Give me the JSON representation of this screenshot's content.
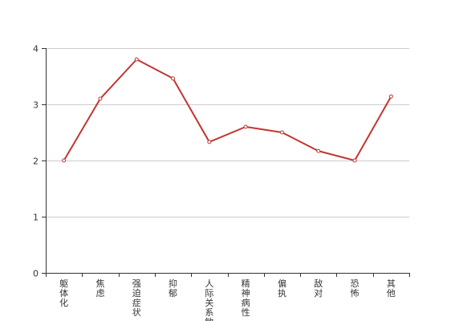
{
  "chart_data": {
    "type": "line",
    "title": "",
    "xlabel": "",
    "ylabel": "",
    "categories": [
      "躯体化",
      "焦虑",
      "强迫症状",
      "抑郁",
      "人际关系敏感",
      "精神病性",
      "偏执",
      "敌对",
      "恐怖",
      "其他"
    ],
    "series": [
      {
        "values": [
          2.0,
          3.1,
          3.8,
          3.46,
          2.33,
          2.6,
          2.5,
          2.17,
          2.0,
          3.14
        ]
      }
    ],
    "ylim": [
      0,
      4
    ],
    "yticks": [
      0,
      1,
      2,
      3,
      4
    ],
    "grid": true,
    "legend": "none",
    "colors": {
      "line": "#c23531",
      "grid": "#cccccc",
      "axis": "#333333",
      "point_fill": "#ffffff"
    }
  }
}
